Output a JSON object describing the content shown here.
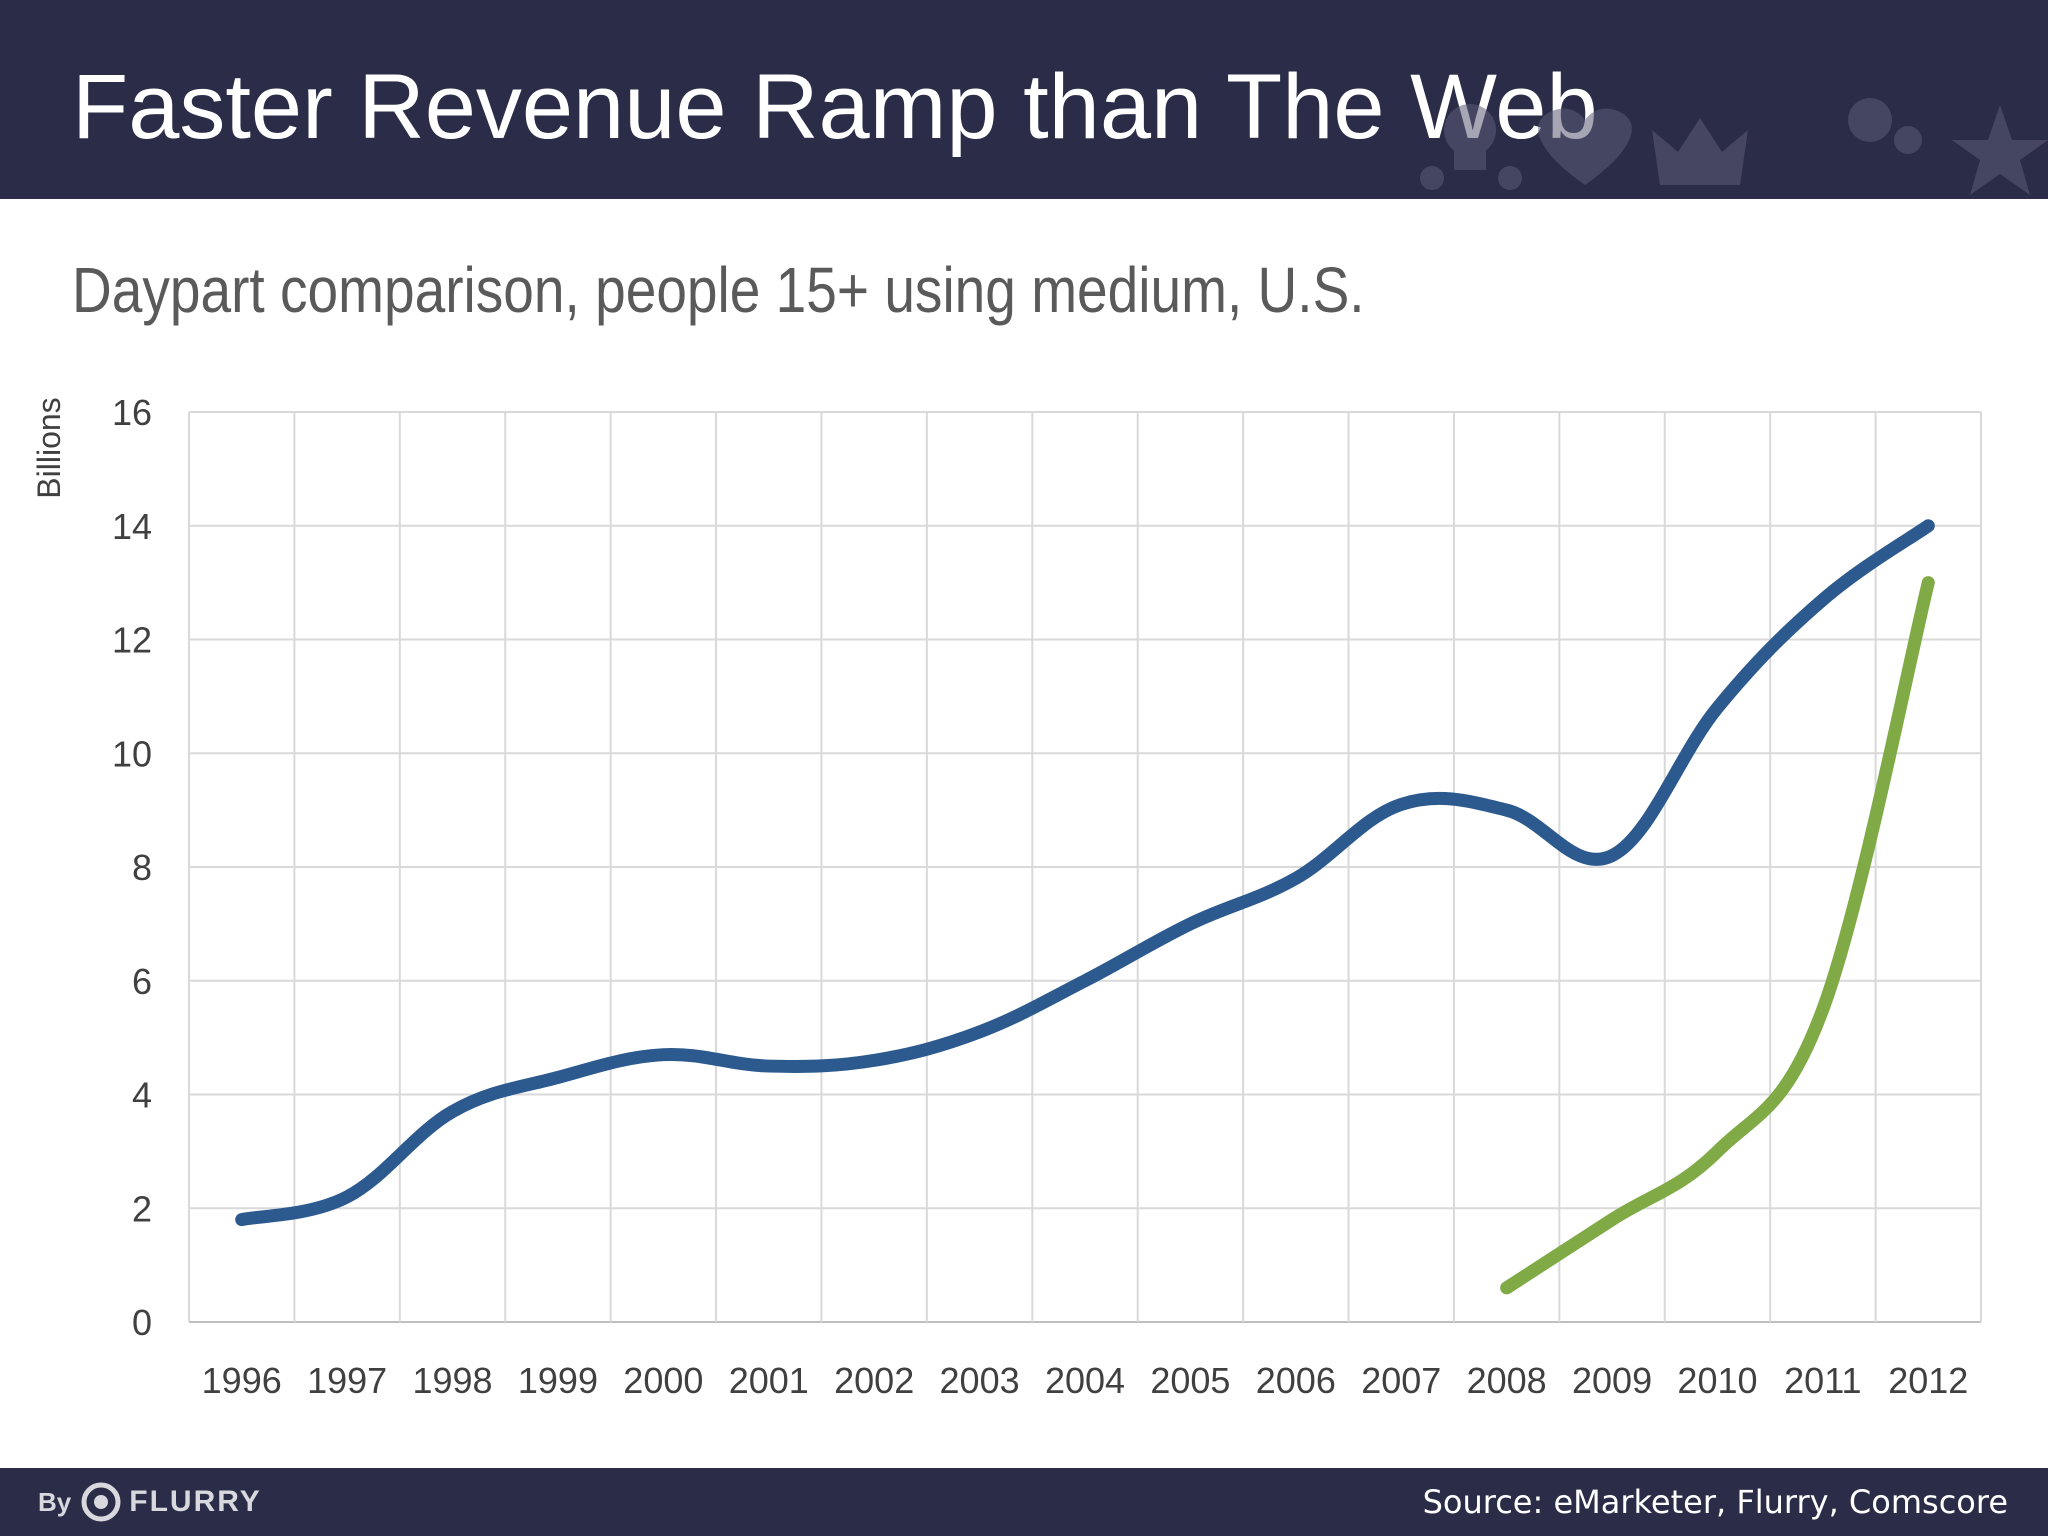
{
  "slide": {
    "title": "Faster Revenue Ramp than The Web",
    "subtitle": "Daypart comparison, people 15+ using medium, U.S."
  },
  "footer": {
    "brand_by": "By",
    "brand_name": "FLURRY",
    "source": "Source: eMarketer, Flurry, Comscore"
  },
  "colors": {
    "header_bg": "#2b2c47",
    "series_blue": "#2c5a8f",
    "series_green": "#7faa45",
    "grid": "#d9d9d9"
  },
  "chart_data": {
    "type": "line",
    "title": "",
    "xlabel": "",
    "ylabel": "Billions",
    "x": [
      "1996",
      "1997",
      "1998",
      "1999",
      "2000",
      "2001",
      "2002",
      "2003",
      "2004",
      "2005",
      "2006",
      "2007",
      "2008",
      "2009",
      "2010",
      "2011",
      "2012"
    ],
    "ylim": [
      0,
      16
    ],
    "yticks": [
      "0",
      "2",
      "4",
      "6",
      "8",
      "10",
      "12",
      "14",
      "16"
    ],
    "grid": true,
    "legend": "none",
    "series": [
      {
        "color": "#2c5a8f",
        "values": [
          1.8,
          2.2,
          3.7,
          4.3,
          4.7,
          4.5,
          4.6,
          5.1,
          6.0,
          7.0,
          7.8,
          9.1,
          9.0,
          8.2,
          10.8,
          12.7,
          14.0
        ]
      },
      {
        "color": "#7faa45",
        "values": [
          null,
          null,
          null,
          null,
          null,
          null,
          null,
          null,
          null,
          null,
          null,
          null,
          0.6,
          1.8,
          3.0,
          5.5,
          13.0
        ]
      }
    ]
  }
}
